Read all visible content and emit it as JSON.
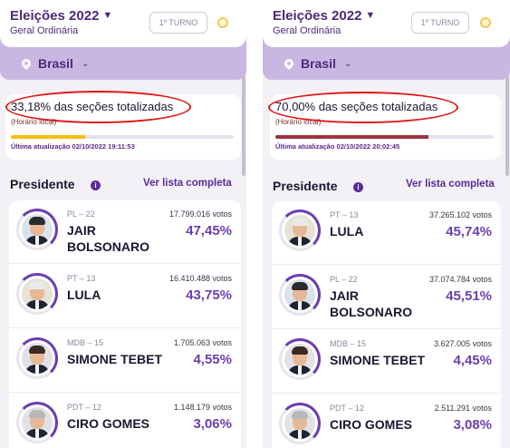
{
  "panels": [
    {
      "header": {
        "title": "Eleições 2022",
        "subtitle": "Geral Ordinária",
        "turno": "1º TURNO"
      },
      "location": {
        "label": "Brasil"
      },
      "progress": {
        "text": "33,18% das seções totalizadas",
        "sub": "(Horário local)",
        "updated": "Última atualização 02/10/2022 19:11:53",
        "fraction": 0.3318,
        "color": "#f2c011"
      },
      "section": {
        "title": "Presidente",
        "link": "Ver lista completa"
      },
      "candidates": [
        {
          "party": "PL – 22",
          "votes": "17.799.016 votos",
          "name": "JAIR BOLSONARO",
          "pct": "47,45%",
          "hair": "#2b2b2b",
          "bg": "#d9e3ec"
        },
        {
          "party": "PT – 13",
          "votes": "16.410.488 votos",
          "name": "LULA",
          "pct": "43,75%",
          "hair": "#e9e9e9",
          "bg": "#e6e2d6"
        },
        {
          "party": "MDB – 15",
          "votes": "1.705.063 votos",
          "name": "SIMONE TEBET",
          "pct": "4,55%",
          "hair": "#3a2a22",
          "bg": "#e3e0e6"
        },
        {
          "party": "PDT – 12",
          "votes": "1.148.179 votos",
          "name": "CIRO GOMES",
          "pct": "3,06%",
          "hair": "#b8b8b8",
          "bg": "#dfe3e6"
        }
      ]
    },
    {
      "header": {
        "title": "Eleições 2022",
        "subtitle": "Geral Ordinária",
        "turno": "1º TURNO"
      },
      "location": {
        "label": "Brasil"
      },
      "progress": {
        "text": "70,00% das seções totalizadas",
        "sub": "(Horário local)",
        "updated": "Última atualização 02/10/2022 20:02:45",
        "fraction": 0.7,
        "color": "#a0333f"
      },
      "section": {
        "title": "Presidente",
        "link": "Ver lista completa"
      },
      "candidates": [
        {
          "party": "PT – 13",
          "votes": "37.265.102 votos",
          "name": "LULA",
          "pct": "45,74%",
          "hair": "#e9e9e9",
          "bg": "#e6e2d6"
        },
        {
          "party": "PL – 22",
          "votes": "37.074.784 votos",
          "name": "JAIR BOLSONARO",
          "pct": "45,51%",
          "hair": "#2b2b2b",
          "bg": "#d9e3ec"
        },
        {
          "party": "MDB – 15",
          "votes": "3.627.005 votos",
          "name": "SIMONE TEBET",
          "pct": "4,45%",
          "hair": "#3a2a22",
          "bg": "#e3e0e6"
        },
        {
          "party": "PDT – 12",
          "votes": "2.511.291 votos",
          "name": "CIRO GOMES",
          "pct": "3,08%",
          "hair": "#b8b8b8",
          "bg": "#dfe3e6"
        }
      ]
    }
  ]
}
